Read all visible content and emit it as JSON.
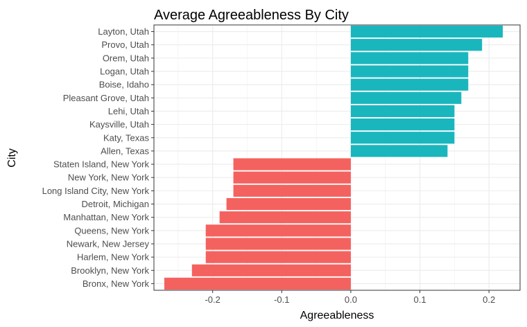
{
  "chart_data": {
    "type": "bar",
    "orientation": "horizontal",
    "title": "Average Agreeableness By City",
    "xlabel": "Agreeableness",
    "ylabel": "City",
    "xlim": [
      -0.285,
      0.245
    ],
    "xticks": [
      -0.2,
      -0.1,
      0.0,
      0.1,
      0.2
    ],
    "xtick_labels": [
      "-0.2",
      "-0.1",
      "0.0",
      "0.1",
      "0.2"
    ],
    "grid": true,
    "legend": "none",
    "colors": {
      "positive": "#1ab6bd",
      "negative": "#f4625f"
    },
    "categories": [
      "Layton, Utah",
      "Provo, Utah",
      "Orem, Utah",
      "Logan, Utah",
      "Boise, Idaho",
      "Pleasant Grove, Utah",
      "Lehi, Utah",
      "Kaysville, Utah",
      "Katy, Texas",
      "Allen, Texas",
      "Staten Island, New York",
      "New York, New York",
      "Long Island City, New York",
      "Detroit, Michigan",
      "Manhattan, New York",
      "Queens, New York",
      "Newark, New Jersey",
      "Harlem, New York",
      "Brooklyn, New York",
      "Bronx, New York"
    ],
    "values": [
      0.22,
      0.19,
      0.17,
      0.17,
      0.17,
      0.16,
      0.15,
      0.15,
      0.15,
      0.14,
      -0.17,
      -0.17,
      -0.17,
      -0.18,
      -0.19,
      -0.21,
      -0.21,
      -0.21,
      -0.23,
      -0.27
    ]
  }
}
